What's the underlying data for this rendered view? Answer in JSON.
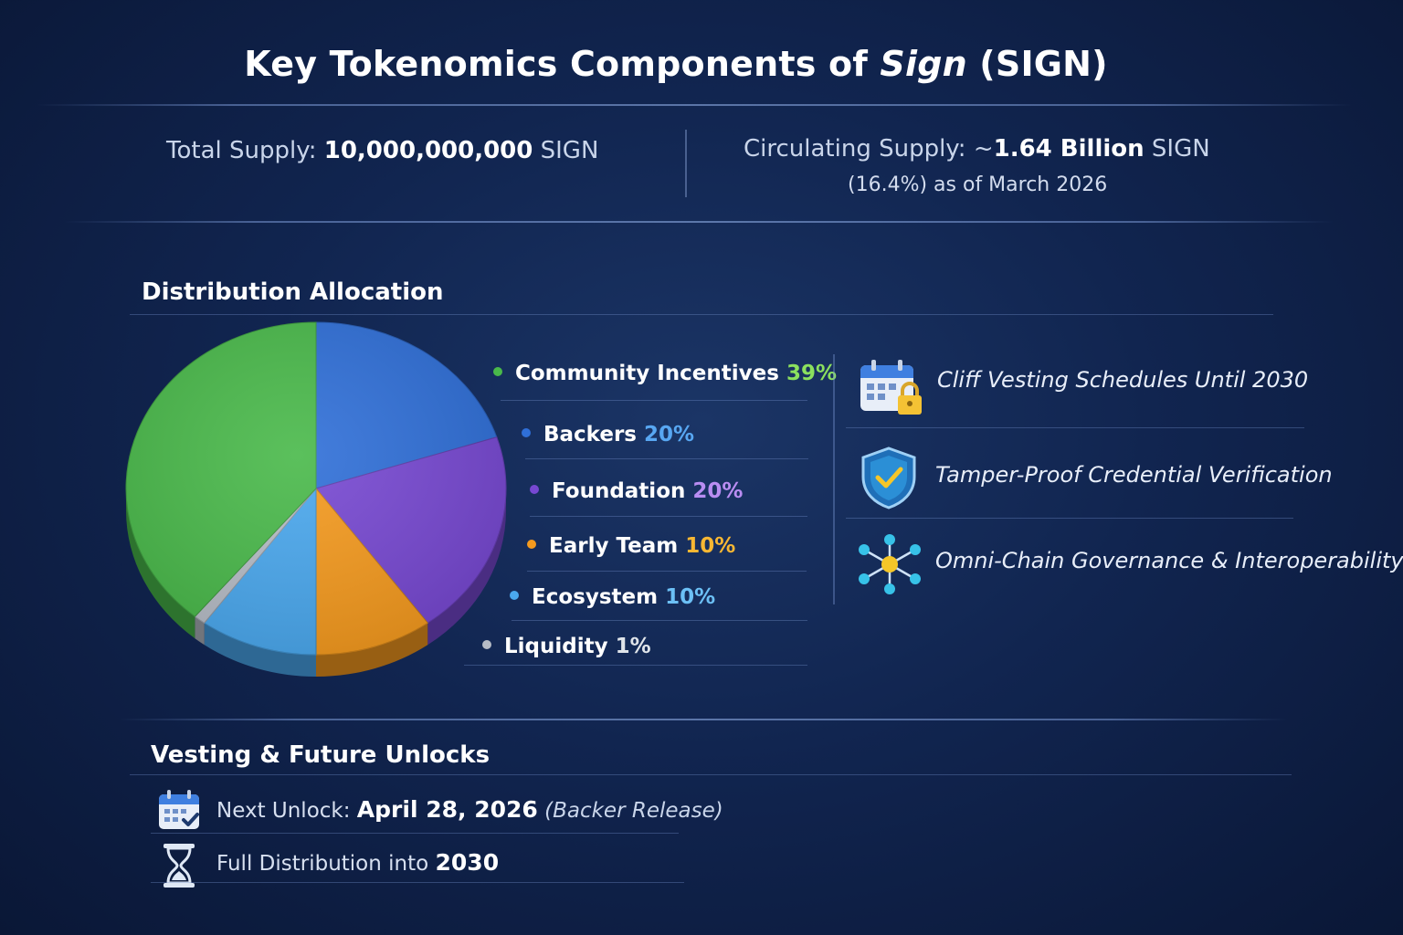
{
  "title": {
    "prefix": "Key Tokenomics Components of ",
    "name": "Sign",
    "suffix": " (SIGN)"
  },
  "supply": {
    "total_label": "Total Supply: ",
    "total_value": "10,000,000,000",
    "total_unit": " SIGN",
    "circ_label": "Circulating Supply: ~",
    "circ_value": "1.64 Billion",
    "circ_unit": " SIGN",
    "circ_note": "(16.4%) as of March 2026"
  },
  "distribution": {
    "heading": "Distribution Allocation"
  },
  "chart_data": {
    "type": "pie",
    "title": "Distribution Allocation",
    "slices": [
      {
        "label": "Community Incentives",
        "value": 39,
        "display": "39%",
        "color": "#49b94a",
        "text_color": "#8be05e"
      },
      {
        "label": "Backers",
        "value": 20,
        "display": "20%",
        "color": "#2f6fd8",
        "text_color": "#58a7f2"
      },
      {
        "label": "Foundation",
        "value": 20,
        "display": "20%",
        "color": "#7748d2",
        "text_color": "#b98df2"
      },
      {
        "label": "Early Team",
        "value": 10,
        "display": "10%",
        "color": "#f59a1e",
        "text_color": "#f7b733"
      },
      {
        "label": "Ecosystem",
        "value": 10,
        "display": "10%",
        "color": "#4aa8ee",
        "text_color": "#6cc0f5"
      },
      {
        "label": "Liquidity",
        "value": 1,
        "display": "1%",
        "color": "#b6bcc6",
        "text_color": "#dfe4ea"
      }
    ],
    "legend_position": "right"
  },
  "features": [
    {
      "text": "Cliff Vesting Schedules Until 2030",
      "icon": "calendar-lock-icon"
    },
    {
      "text": "Tamper-Proof Credential Verification",
      "icon": "shield-check-icon"
    },
    {
      "text": "Omni-Chain Governance & Interoperability",
      "icon": "network-nodes-icon"
    }
  ],
  "vesting": {
    "heading": "Vesting & Future Unlocks",
    "next_label": "Next Unlock: ",
    "next_date": "April 28, 2026",
    "next_note": " (Backer Release)",
    "full_label": "Full Distribution into ",
    "full_year": "2030"
  },
  "colors": {
    "background": "#112550",
    "accent_green": "#49b94a",
    "accent_blue": "#2f6fd8",
    "accent_purple": "#7748d2",
    "accent_orange": "#f59a1e"
  }
}
